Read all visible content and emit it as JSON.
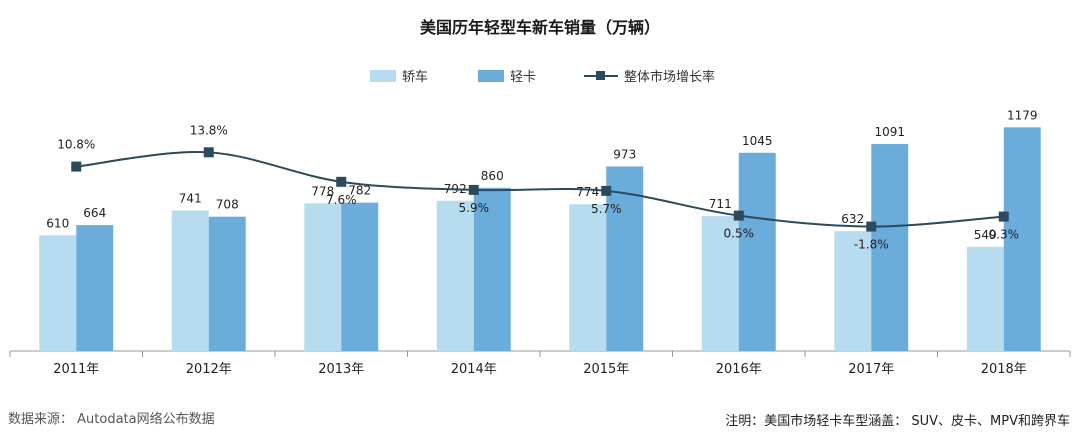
{
  "page": {
    "source": "数据来源： Autodata网络公布数据",
    "note": "注明：美国市场轻卡车型涵盖： SUV、皮卡、MPV和跨界车"
  },
  "colors": {
    "sedan": "#b7dcef",
    "light_truck": "#6aaddb",
    "line": "#2b4a5c",
    "axis": "#999999"
  },
  "chart_data": {
    "type": "bar",
    "title": "美国历年轻型车新车销量（万辆）",
    "categories": [
      "2011年",
      "2012年",
      "2013年",
      "2014年",
      "2015年",
      "2016年",
      "2017年",
      "2018年"
    ],
    "series": [
      {
        "name": "轿车",
        "type": "bar",
        "values": [
          610,
          741,
          778,
          792,
          774,
          711,
          632,
          549
        ]
      },
      {
        "name": "轻卡",
        "type": "bar",
        "values": [
          664,
          708,
          782,
          860,
          973,
          1045,
          1091,
          1179
        ]
      },
      {
        "name": "整体市场增长率",
        "type": "line",
        "values": [
          10.8,
          13.8,
          7.6,
          5.9,
          5.7,
          0.5,
          -1.8,
          0.3
        ],
        "labels": [
          "10.8%",
          "13.8%",
          "7.6%",
          "5.9%",
          "5.7%",
          "0.5%",
          "-1.8%",
          "0.3%"
        ]
      }
    ],
    "ylim": [
      0,
      1250
    ],
    "y2lim": [
      -5,
      16
    ],
    "legend_position": "top-center",
    "grid": false
  }
}
